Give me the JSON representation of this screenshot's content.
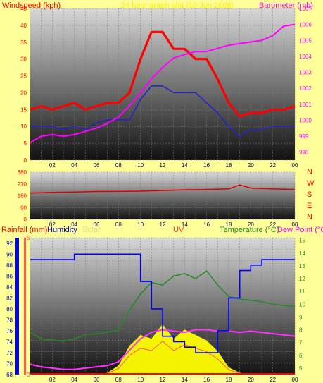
{
  "header": {
    "windspeed_label": "Windspeed (kph)",
    "title": "24 hour graph plot (10 Jun 2008)",
    "barometer_label": "Barometer (mb)"
  },
  "direction_axis": {
    "letters": [
      "N",
      "W",
      "S",
      "E",
      "N"
    ]
  },
  "bottom_header": {
    "rainfall_label": "Rainfall (mm)",
    "humidity_label": "Humidity",
    "solar_label": "Solar",
    "uv_label": "UV",
    "temperature_label": "Temperature (°C)",
    "dewpoint_label": "Dew Point (°C)"
  },
  "colors": {
    "background": "#ffff99",
    "wind_gust": "#ff0000",
    "wind_avg": "#2222cc",
    "barometer": "#ff00ff",
    "wind_direction": "#dd0000",
    "humidity": "#0000ff",
    "temperature": "#228b22",
    "dew_point": "#ff33ff",
    "solar": "#ffff00",
    "uv": "#ff5555",
    "rain": "#ff0000"
  },
  "chart_data": [
    {
      "type": "line",
      "name": "wind-and-barometer",
      "x_ticks": [
        "02",
        "04",
        "06",
        "08",
        "10",
        "12",
        "14",
        "16",
        "18",
        "20",
        "22",
        "00"
      ],
      "ylabel": "Windspeed (kph)",
      "ylim": [
        0,
        45
      ],
      "y_ticks": [
        "0",
        "5",
        "10",
        "15",
        "20",
        "25",
        "30",
        "35",
        "40",
        "45"
      ],
      "y2label": "Barometer (mb)",
      "y2lim": [
        997.5,
        1007
      ],
      "y2_ticks": [
        "998",
        "999",
        "1000",
        "1001",
        "1002",
        "1003",
        "1004",
        "1005",
        "1006",
        "1007"
      ],
      "x_hours": [
        0,
        1,
        2,
        3,
        4,
        5,
        6,
        7,
        8,
        9,
        10,
        11,
        12,
        13,
        14,
        15,
        16,
        17,
        18,
        19,
        20,
        21,
        22,
        23,
        24
      ],
      "series": [
        {
          "values": [
            15,
            16,
            15,
            16,
            17,
            15,
            16,
            17,
            17,
            20,
            30,
            38,
            38,
            33,
            33,
            30,
            30,
            24,
            17,
            13,
            14,
            14,
            15,
            15,
            16
          ]
        },
        {
          "values": [
            10,
            10,
            10,
            9,
            10,
            9,
            11,
            12,
            12,
            12,
            18,
            22,
            22,
            20,
            20,
            20,
            17,
            14,
            10,
            7,
            9,
            9,
            10,
            10,
            10
          ]
        },
        {
          "values": [
            998.6,
            999.0,
            999.1,
            999.0,
            999.1,
            999.3,
            999.5,
            999.8,
            1000.2,
            1000.9,
            1001.7,
            1002.6,
            1003.3,
            1003.9,
            1004.1,
            1004.3,
            1004.3,
            1004.5,
            1004.7,
            1004.8,
            1004.9,
            1005.0,
            1005.3,
            1005.9,
            1006.0
          ]
        }
      ]
    },
    {
      "type": "line",
      "name": "wind-direction",
      "x_ticks": [
        "02",
        "04",
        "06",
        "08",
        "10",
        "12",
        "14",
        "16",
        "18",
        "20",
        "22",
        "00"
      ],
      "ylim": [
        0,
        360
      ],
      "y_ticks": [
        "0",
        "90",
        "180",
        "270",
        "360"
      ],
      "x_hours": [
        0,
        2,
        4,
        6,
        8,
        10,
        12,
        14,
        16,
        18,
        19,
        20,
        22,
        24
      ],
      "series": [
        {
          "values": [
            200,
            205,
            208,
            212,
            213,
            215,
            220,
            225,
            228,
            232,
            262,
            238,
            232,
            228
          ]
        }
      ]
    },
    {
      "type": "line",
      "name": "humidity-temperature-solar",
      "x_ticks": [
        "02",
        "04",
        "06",
        "08",
        "10",
        "12",
        "14",
        "16",
        "18",
        "20",
        "22",
        "00"
      ],
      "y_ticks_humidity": [
        "68",
        "70",
        "72",
        "74",
        "76",
        "78",
        "80",
        "82",
        "84",
        "86",
        "88",
        "90",
        "92"
      ],
      "humidity_lim": [
        68,
        93
      ],
      "y_ticks_temp": [
        "5",
        "6",
        "7",
        "8",
        "9",
        "10",
        "11",
        "12",
        "13",
        "14",
        "15"
      ],
      "temp_lim": [
        4.5,
        15.2
      ],
      "rain_tick": [
        "0",
        "5"
      ],
      "rain_lim": [
        0,
        5
      ],
      "x_hours": [
        0,
        1,
        2,
        3,
        4,
        5,
        6,
        7,
        8,
        9,
        10,
        11,
        12,
        13,
        14,
        15,
        16,
        17,
        18,
        19,
        20,
        21,
        22,
        23,
        24
      ],
      "series": [
        {
          "values": [
            89,
            89,
            89,
            89,
            90,
            90,
            90,
            90,
            90,
            90,
            85,
            80,
            75,
            74,
            73,
            72,
            72,
            76,
            82,
            87,
            88,
            89,
            89,
            89,
            89
          ]
        },
        {
          "values": [
            7.8,
            7.3,
            7.2,
            7.1,
            7.3,
            7.6,
            7.7,
            7.8,
            8.0,
            9.5,
            10.8,
            11.7,
            11.5,
            12.2,
            12.4,
            12.0,
            12.6,
            11.5,
            10.6,
            10.4,
            10.3,
            10.2,
            10.0,
            9.9,
            9.8
          ]
        },
        {
          "values": [
            5.3,
            5.1,
            5.0,
            4.9,
            4.9,
            5.0,
            5.1,
            5.2,
            5.5,
            6.4,
            7.3,
            7.8,
            8.0,
            7.9,
            7.8,
            8.0,
            8.0,
            7.9,
            7.9,
            7.8,
            7.9,
            7.8,
            7.7,
            7.6,
            7.5
          ]
        },
        {
          "values": [
            0,
            0,
            0,
            0,
            0,
            0,
            0,
            0.1,
            0.5,
            1.6,
            2.2,
            2.0,
            2.8,
            2.0,
            2.5,
            2.2,
            1.9,
            1.3,
            0.4,
            0.1,
            0,
            0,
            0,
            0,
            0
          ]
        }
      ]
    }
  ]
}
